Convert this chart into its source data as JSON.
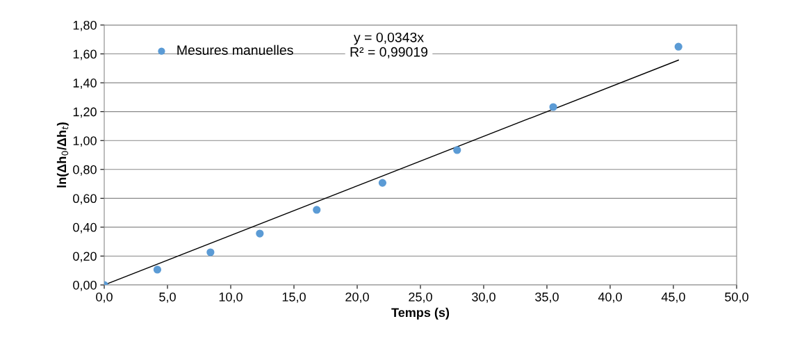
{
  "chart_data": {
    "type": "scatter",
    "xlabel": "Temps (s)",
    "ylabel": "ln(Δh$_{0}$/Δh$_{t}$)",
    "series": [
      {
        "name": "Mesures manuelles",
        "color": "#5b9bd5",
        "marker": "circle",
        "x": [
          0,
          4.2,
          8.4,
          12.3,
          16.8,
          22.0,
          27.9,
          35.5,
          45.4
        ],
        "values": [
          0,
          0.106,
          0.226,
          0.356,
          0.52,
          0.707,
          0.934,
          1.232,
          1.65
        ]
      },
      {
        "color": "#000000",
        "type": "line",
        "marker": "none",
        "x": [
          0,
          45.4
        ],
        "values": [
          0,
          1.557
        ]
      }
    ],
    "annotations": [
      "y = 0,0343x\nR² = 0,99019"
    ],
    "xlim": [
      0,
      50
    ],
    "ylim": [
      0,
      1.8
    ],
    "xticks": [
      {
        "value": 0,
        "label": "0,0"
      },
      {
        "value": 5,
        "label": "5,0"
      },
      {
        "value": 10,
        "label": "10,0"
      },
      {
        "value": 15,
        "label": "15,0"
      },
      {
        "value": 20,
        "label": "20,0"
      },
      {
        "value": 25,
        "label": "25,0"
      },
      {
        "value": 30,
        "label": "30,0"
      },
      {
        "value": 35,
        "label": "35,0"
      },
      {
        "value": 40,
        "label": "40,0"
      },
      {
        "value": 45,
        "label": "45,0"
      },
      {
        "value": 50,
        "label": "50,0"
      }
    ],
    "yticks": [
      {
        "value": 0,
        "label": "0,00"
      },
      {
        "value": 0.2,
        "label": "0,20"
      },
      {
        "value": 0.4,
        "label": "0,40"
      },
      {
        "value": 0.6,
        "label": "0,60"
      },
      {
        "value": 0.8,
        "label": "0,80"
      },
      {
        "value": 1.0,
        "label": "1,00"
      },
      {
        "value": 1.2,
        "label": "1,20"
      },
      {
        "value": 1.4,
        "label": "1,40"
      },
      {
        "value": 1.6,
        "label": "1,60"
      },
      {
        "value": 1.8,
        "label": "1,80"
      }
    ],
    "grid": "y",
    "legend": "top left"
  }
}
